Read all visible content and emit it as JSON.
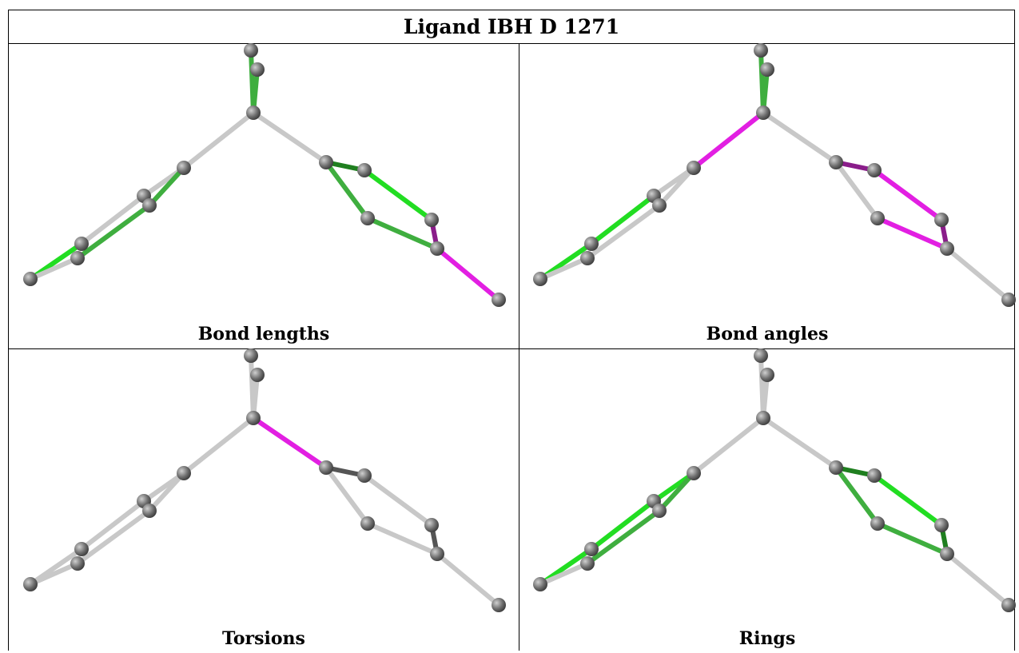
{
  "title": "Ligand IBH D 1271",
  "panels": [
    {
      "caption": "Bond lengths"
    },
    {
      "caption": "Bond angles"
    },
    {
      "caption": "Torsions"
    },
    {
      "caption": "Rings"
    }
  ],
  "colors": {
    "atom": "#6e6e6e",
    "bond_default": "#c8c8c8",
    "bright_green": "#22dd22",
    "dark_green": "#1f7f1f",
    "medium_green": "#3fae3f",
    "magenta": "#e21fe2",
    "dark_magenta": "#8a1d8a",
    "dark_grey": "#555555"
  }
}
